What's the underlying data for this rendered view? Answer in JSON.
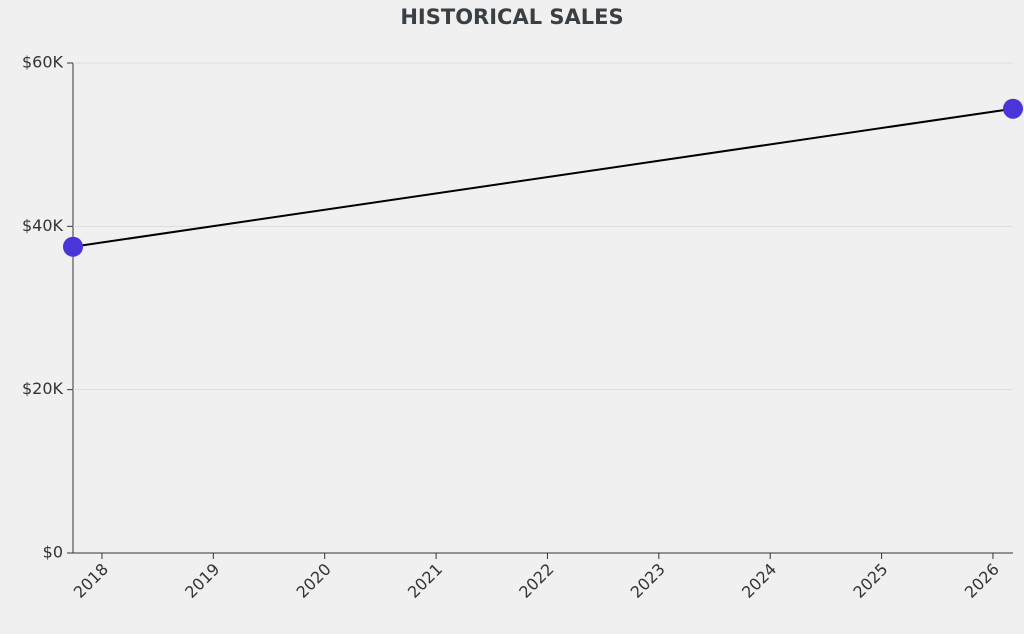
{
  "chart_data": {
    "type": "line",
    "title": "HISTORICAL SALES",
    "x": [
      2017.74,
      2026.18
    ],
    "values": [
      37500,
      54400
    ],
    "color": "#4a35d9",
    "line_color": "#000000",
    "xlim": [
      2017.74,
      2026.18
    ],
    "xticks": [
      2018,
      2019,
      2020,
      2021,
      2022,
      2023,
      2024,
      2025,
      2026
    ],
    "ylim": [
      0,
      60000
    ],
    "yticks": [
      {
        "value": 0,
        "label": "$0"
      },
      {
        "value": 20000,
        "label": "$20K"
      },
      {
        "value": 40000,
        "label": "$40K"
      },
      {
        "value": 60000,
        "label": "$60K"
      }
    ],
    "grid": true
  }
}
